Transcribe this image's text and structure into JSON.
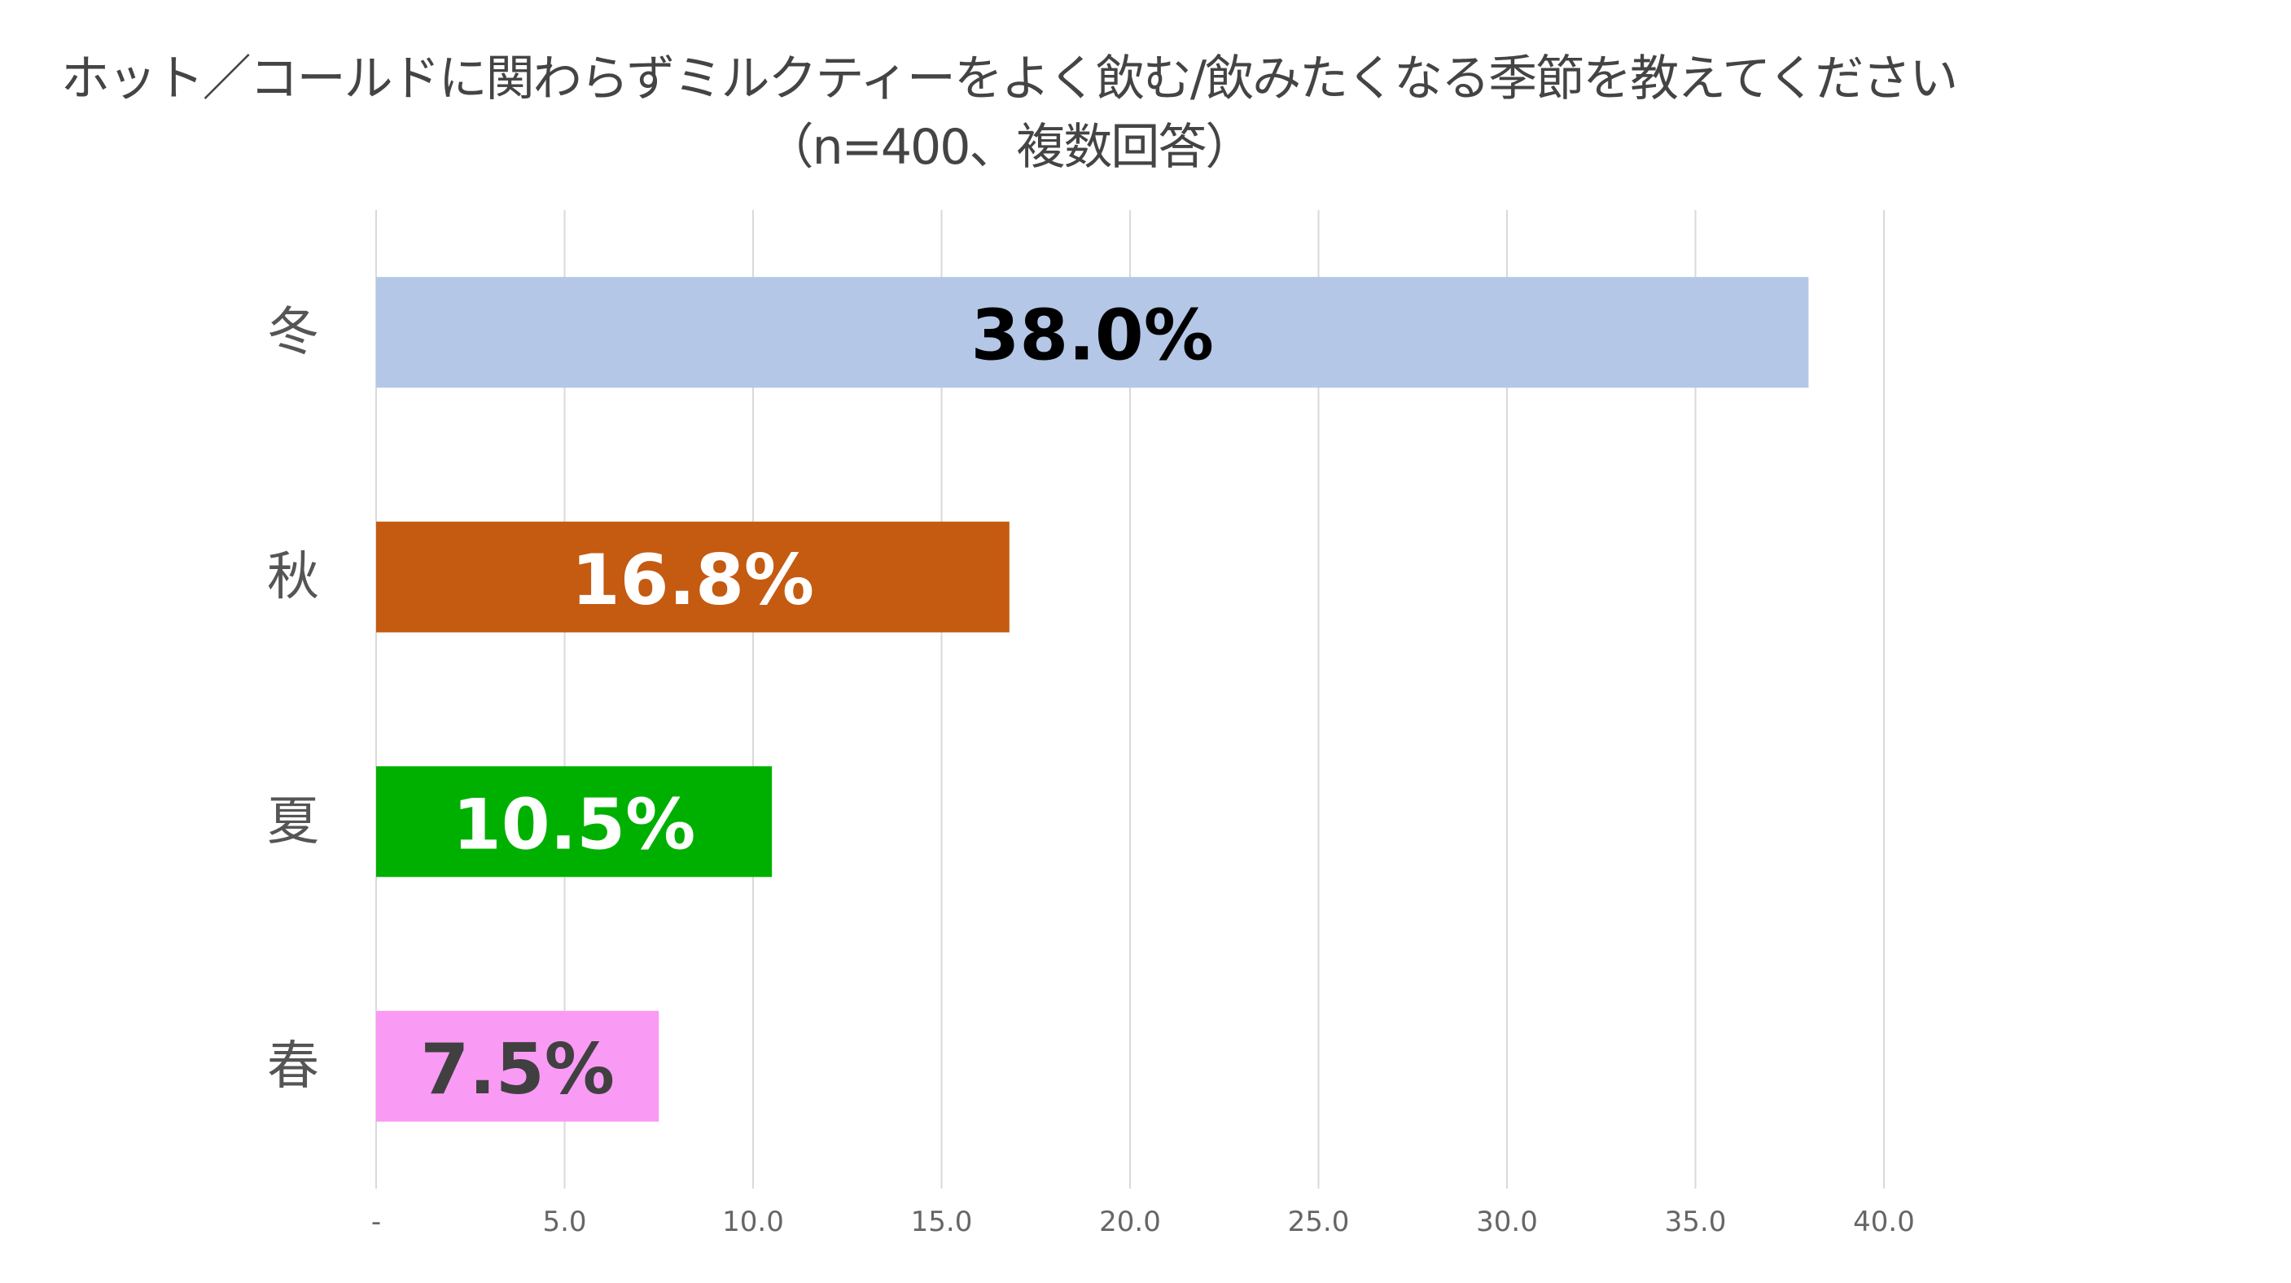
{
  "chart_data": {
    "type": "bar",
    "orientation": "horizontal",
    "title": "ホット／コールドに関わらずミルクティーをよく飲む/飲みたくなる季節を教えてください",
    "subtitle": "（n=400、複数回答）",
    "categories": [
      "冬",
      "秋",
      "夏",
      "春"
    ],
    "values": [
      38.0,
      16.8,
      10.5,
      7.5
    ],
    "data_labels": [
      "38.0%",
      "16.8%",
      "10.5%",
      "7.5%"
    ],
    "colors": [
      "#B4C7E7",
      "#C55A11",
      "#00B000",
      "#F99AF5"
    ],
    "label_colors": [
      "#000000",
      "#FFFFFF",
      "#FFFFFF",
      "#404040"
    ],
    "xlim": [
      0,
      40
    ],
    "x_ticks": [
      0,
      5,
      10,
      15,
      20,
      25,
      30,
      35,
      40
    ],
    "x_tick_labels": [
      "-",
      "5.0",
      "10.0",
      "15.0",
      "20.0",
      "25.0",
      "30.0",
      "35.0",
      "40.0"
    ],
    "grid": true,
    "legend": "none"
  }
}
